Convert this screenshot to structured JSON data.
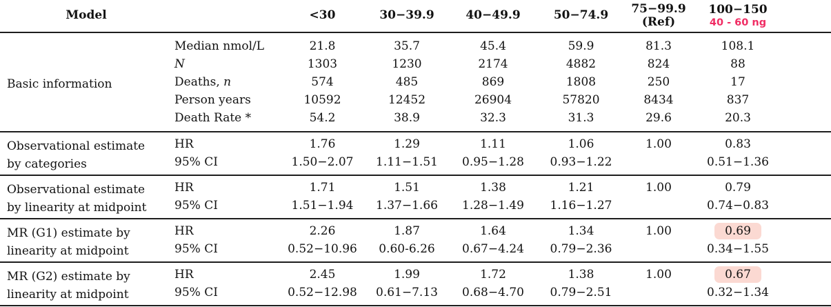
{
  "colors": {
    "annotation_text": "#f02d64",
    "highlight_bg": "#fbd9d2"
  },
  "header": {
    "model": "Model",
    "cols": [
      "<30",
      "30−39.9",
      "40−49.9",
      "50−74.9",
      "75−99.9",
      "100−150"
    ],
    "ref_note": "(Ref)",
    "annotation": "40 - 60 ng"
  },
  "sections": [
    {
      "label": [
        "Basic information",
        ""
      ],
      "rows": [
        {
          "pre": "Median nmol/L",
          "it": "",
          "values": [
            "21.8",
            "35.7",
            "45.4",
            "59.9",
            "81.3",
            "108.1"
          ]
        },
        {
          "pre": "",
          "it": "N",
          "values": [
            "1303",
            "1230",
            "2174",
            "4882",
            "824",
            "88"
          ]
        },
        {
          "pre": "Deaths, ",
          "it": "n",
          "values": [
            "574",
            "485",
            "869",
            "1808",
            "250",
            "17"
          ]
        },
        {
          "pre": "Person years",
          "it": "",
          "values": [
            "10592",
            "12452",
            "26904",
            "57820",
            "8434",
            "837"
          ]
        },
        {
          "pre": "Death Rate *",
          "it": "",
          "values": [
            "54.2",
            "38.9",
            "32.3",
            "31.3",
            "29.6",
            "20.3"
          ]
        }
      ]
    },
    {
      "label": [
        "Observational estimate",
        "by categories"
      ],
      "rows": [
        {
          "pre": "HR",
          "it": "",
          "values": [
            "1.76",
            "1.29",
            "1.11",
            "1.06",
            "1.00",
            "0.83"
          ]
        },
        {
          "pre": "95% CI",
          "it": "",
          "values": [
            "1.50−2.07",
            "1.11−1.51",
            "0.95−1.28",
            "0.93−1.22",
            "",
            "0.51−1.36"
          ]
        }
      ]
    },
    {
      "label": [
        "Observational estimate",
        "by linearity at midpoint"
      ],
      "rows": [
        {
          "pre": "HR",
          "it": "",
          "values": [
            "1.71",
            "1.51",
            "1.38",
            "1.21",
            "1.00",
            "0.79"
          ]
        },
        {
          "pre": "95% CI",
          "it": "",
          "values": [
            "1.51−1.94",
            "1.37−1.66",
            "1.28−1.49",
            "1.16−1.27",
            "",
            "0.74−0.83"
          ]
        }
      ]
    },
    {
      "label": [
        "MR (G1) estimate by",
        "linearity at midpoint"
      ],
      "rows": [
        {
          "pre": "HR",
          "it": "",
          "values": [
            "2.26",
            "1.87",
            "1.64",
            "1.34",
            "1.00",
            "0.69"
          ]
        },
        {
          "pre": "95% CI",
          "it": "",
          "values": [
            "0.52−10.96",
            "0.60-6.26",
            "0.67−4.24",
            "0.79−2.36",
            "",
            "0.34−1.55"
          ]
        }
      ]
    },
    {
      "label": [
        "MR (G2) estimate by",
        "linearity at midpoint"
      ],
      "rows": [
        {
          "pre": "HR",
          "it": "",
          "values": [
            "2.45",
            "1.99",
            "1.72",
            "1.38",
            "1.00",
            "0.67"
          ]
        },
        {
          "pre": "95% CI",
          "it": "",
          "values": [
            "0.52−12.98",
            "0.61−7.13",
            "0.68−4.70",
            "0.79−2.51",
            "",
            "0.32−1.34"
          ]
        }
      ]
    }
  ]
}
